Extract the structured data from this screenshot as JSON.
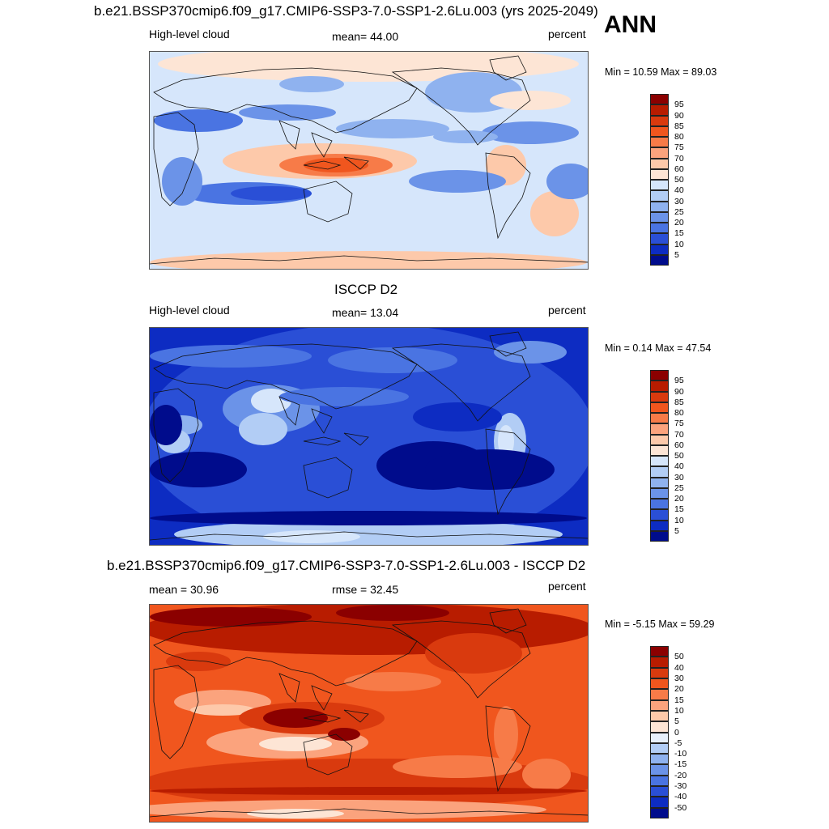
{
  "season": "ANN",
  "panels": [
    {
      "title": "b.e21.BSSP370cmip6.f09_g17.CMIP6-SSP3-7.0-SSP1-2.6Lu.003 (yrs 2025-2049)",
      "left_label": "High-level cloud",
      "center_label": "mean=  44.00",
      "right_label": "percent",
      "minmax": "Min =  10.59 Max =  89.03",
      "colorbar_levels": [
        "95",
        "90",
        "85",
        "80",
        "75",
        "70",
        "60",
        "50",
        "40",
        "30",
        "25",
        "20",
        "15",
        "10",
        "5"
      ],
      "colorbar_colors": [
        "#8b0000",
        "#b81c00",
        "#d93a0e",
        "#f0561e",
        "#f77b48",
        "#fba37d",
        "#fdc9aa",
        "#fde5d5",
        "#d6e6fb",
        "#b2cdf5",
        "#8fb2ef",
        "#6b93e8",
        "#4a74e2",
        "#2a4fd6",
        "#0d2cc2",
        "#000c8c"
      ],
      "map_style": "model"
    },
    {
      "title": "ISCCP D2",
      "left_label": "High-level cloud",
      "center_label": "mean=  13.04",
      "right_label": "percent",
      "minmax": "Min =   0.14 Max =  47.54",
      "colorbar_levels": [
        "95",
        "90",
        "85",
        "80",
        "75",
        "70",
        "60",
        "50",
        "40",
        "30",
        "25",
        "20",
        "15",
        "10",
        "5"
      ],
      "colorbar_colors": [
        "#8b0000",
        "#b81c00",
        "#d93a0e",
        "#f0561e",
        "#f77b48",
        "#fba37d",
        "#fdc9aa",
        "#fde5d5",
        "#d6e6fb",
        "#b2cdf5",
        "#8fb2ef",
        "#6b93e8",
        "#4a74e2",
        "#2a4fd6",
        "#0d2cc2",
        "#000c8c"
      ],
      "map_style": "obs"
    },
    {
      "title": "b.e21.BSSP370cmip6.f09_g17.CMIP6-SSP3-7.0-SSP1-2.6Lu.003 - ISCCP D2",
      "left_label": "mean =  30.96",
      "center_label": "rmse =  32.45",
      "right_label": "percent",
      "minmax": "Min =  -5.15 Max =  59.29",
      "colorbar_levels": [
        "50",
        "40",
        "30",
        "20",
        "15",
        "10",
        "5",
        "0",
        "-5",
        "-10",
        "-15",
        "-20",
        "-30",
        "-40",
        "-50"
      ],
      "colorbar_colors": [
        "#8b0000",
        "#b81c00",
        "#d93a0e",
        "#f0561e",
        "#f77b48",
        "#fba37d",
        "#fdc9aa",
        "#fde5d5",
        "#e8f0fb",
        "#b2cdf5",
        "#8fb2ef",
        "#6b93e8",
        "#4a74e2",
        "#2a4fd6",
        "#0d2cc2",
        "#000c8c"
      ],
      "map_style": "diff"
    }
  ],
  "chart_data": {
    "type": "heatmap",
    "grid": false,
    "panels": [
      {
        "variable": "High-level cloud",
        "units": "percent",
        "mean": 44.0,
        "min": 10.59,
        "max": 89.03,
        "levels": [
          5,
          10,
          15,
          20,
          25,
          30,
          40,
          50,
          60,
          70,
          75,
          80,
          85,
          90,
          95
        ]
      },
      {
        "variable": "High-level cloud",
        "units": "percent",
        "mean": 13.04,
        "min": 0.14,
        "max": 47.54,
        "levels": [
          5,
          10,
          15,
          20,
          25,
          30,
          40,
          50,
          60,
          70,
          75,
          80,
          85,
          90,
          95
        ]
      },
      {
        "units": "percent",
        "mean": 30.96,
        "rmse": 32.45,
        "min": -5.15,
        "max": 59.29,
        "levels": [
          -50,
          -40,
          -30,
          -20,
          -15,
          -10,
          -5,
          0,
          5,
          10,
          15,
          20,
          30,
          40,
          50
        ]
      }
    ]
  }
}
